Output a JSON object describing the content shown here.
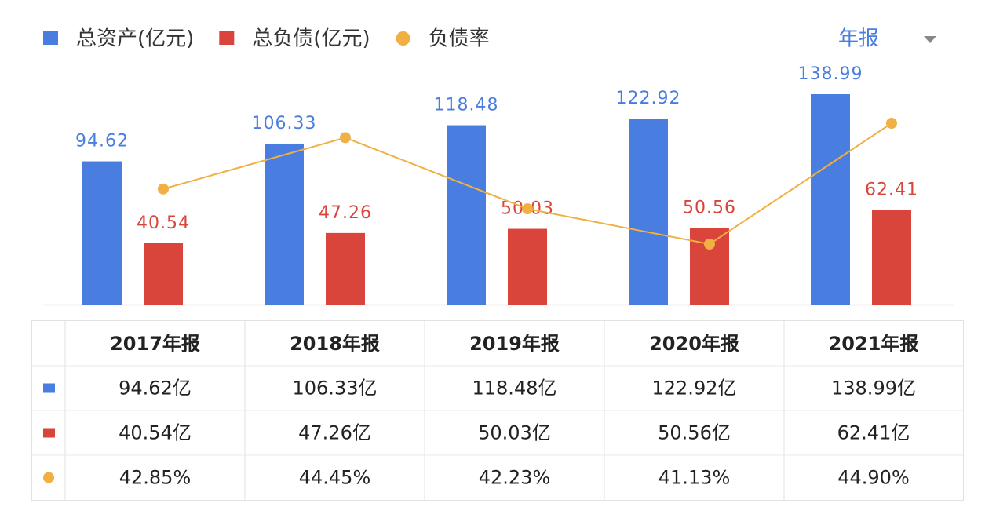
{
  "chart_data": {
    "type": "bar-line",
    "period": "年报",
    "categories": [
      "2017年报",
      "2018年报",
      "2019年报",
      "2020年报",
      "2021年报"
    ],
    "series": [
      {
        "name": "总资产(亿元)",
        "type": "bar",
        "color": "#4a7de0",
        "values": [
          94.62,
          106.33,
          118.48,
          122.92,
          138.99
        ],
        "table_labels": [
          "94.62亿",
          "106.33亿",
          "118.48亿",
          "122.92亿",
          "138.99亿"
        ]
      },
      {
        "name": "总负债(亿元)",
        "type": "bar",
        "color": "#d9453b",
        "values": [
          40.54,
          47.26,
          50.03,
          50.56,
          62.41
        ],
        "table_labels": [
          "40.54亿",
          "47.26亿",
          "50.03亿",
          "50.56亿",
          "62.41亿"
        ]
      },
      {
        "name": "负债率",
        "type": "line",
        "axis": "y2",
        "color": "#f0b044",
        "values": [
          42.85,
          44.45,
          42.23,
          41.13,
          44.9
        ],
        "table_labels": [
          "42.85%",
          "44.45%",
          "42.23%",
          "41.13%",
          "44.90%"
        ]
      }
    ]
  }
}
